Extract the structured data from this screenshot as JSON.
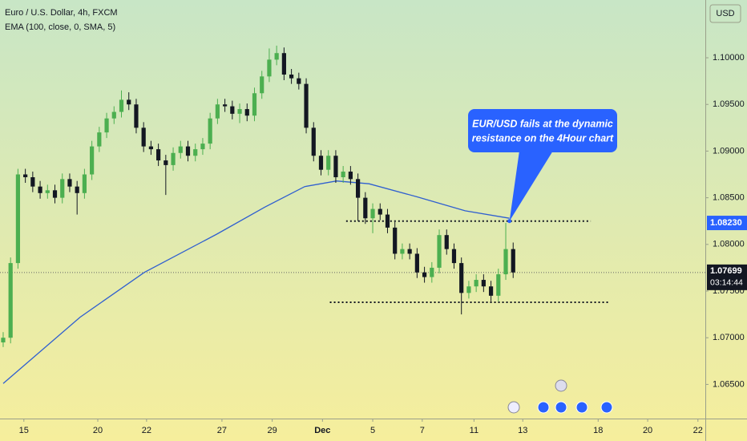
{
  "chart_data": {
    "type": "candlestick",
    "title": "Euro / U.S. Dollar, 4h, FXCM",
    "subtitle": "EMA (100, close, 0, SMA, 5)",
    "currency": "USD",
    "up_color": "#4caf50",
    "down_color": "#131722",
    "open": [
      1.0695,
      1.07,
      1.078,
      1.0875,
      1.0872,
      1.0862,
      1.0855,
      1.0858,
      1.085,
      1.087,
      1.0862,
      1.0855,
      1.0875,
      1.0905,
      1.092,
      1.0935,
      1.0942,
      1.0955,
      1.095,
      1.0925,
      1.0905,
      1.0902,
      1.089,
      1.0885,
      1.0898,
      1.0905,
      1.0895,
      1.0902,
      1.0908,
      1.0935,
      1.095,
      1.0948,
      1.094,
      1.0945,
      1.0938,
      1.0962,
      1.098,
      1.0998,
      1.1005,
      1.0982,
      1.0978,
      1.0972,
      1.0925,
      1.0895,
      1.088,
      1.0895,
      1.0872,
      1.0878,
      1.087,
      1.085,
      1.0828,
      1.0838,
      1.0832,
      1.0818,
      1.079,
      1.0795,
      1.079,
      1.077,
      1.0765,
      1.0775,
      1.081,
      1.0795,
      1.078,
      1.0748,
      1.0755,
      1.0762,
      1.0755,
      1.0745,
      1.0768,
      1.0795
    ],
    "high": [
      1.0706,
      1.0786,
      1.0881,
      1.0881,
      1.0878,
      1.0868,
      1.0864,
      1.0864,
      1.0876,
      1.0876,
      1.0868,
      1.0881,
      1.0911,
      1.0926,
      1.0941,
      1.0948,
      1.0965,
      1.0963,
      1.0956,
      1.0931,
      1.0911,
      1.0908,
      1.0896,
      1.0904,
      1.0911,
      1.0911,
      1.0908,
      1.0914,
      1.0941,
      1.0956,
      1.0956,
      1.0954,
      1.0951,
      1.0951,
      1.0968,
      1.0986,
      1.101,
      1.1013,
      1.1011,
      1.0988,
      1.0984,
      1.0978,
      1.0931,
      1.0901,
      1.0901,
      1.0901,
      1.0884,
      1.0884,
      1.0876,
      1.0856,
      1.0844,
      1.0844,
      1.0838,
      1.0824,
      1.0801,
      1.0801,
      1.0796,
      1.0776,
      1.0781,
      1.0816,
      1.0816,
      1.0801,
      1.0786,
      1.0761,
      1.0768,
      1.0768,
      1.0761,
      1.0774,
      1.0823,
      1.0802
    ],
    "low": [
      1.069,
      1.0694,
      1.0774,
      1.0866,
      1.0856,
      1.0849,
      1.0849,
      1.0844,
      1.0844,
      1.0856,
      1.0832,
      1.0849,
      1.0869,
      1.0899,
      1.0914,
      1.0929,
      1.0936,
      1.0944,
      1.0919,
      1.0899,
      1.0896,
      1.0884,
      1.0853,
      1.0879,
      1.0892,
      1.0889,
      1.0889,
      1.0896,
      1.0902,
      1.0929,
      1.0942,
      1.0934,
      1.093,
      1.0932,
      1.0932,
      1.0956,
      1.0974,
      1.0992,
      1.0976,
      1.0972,
      1.0966,
      1.0919,
      1.0889,
      1.0874,
      1.0874,
      1.0866,
      1.0866,
      1.0864,
      1.0825,
      1.0822,
      1.0812,
      1.0826,
      1.0812,
      1.0784,
      1.0784,
      1.0784,
      1.0764,
      1.0759,
      1.0759,
      1.0769,
      1.0789,
      1.0774,
      1.0725,
      1.0742,
      1.0749,
      1.0749,
      1.0739,
      1.0739,
      1.0762,
      1.0764
    ],
    "close": [
      1.07,
      1.078,
      1.0875,
      1.0872,
      1.0862,
      1.0855,
      1.0858,
      1.085,
      1.087,
      1.0862,
      1.0855,
      1.0875,
      1.0905,
      1.092,
      1.0935,
      1.0942,
      1.0955,
      1.095,
      1.0925,
      1.0905,
      1.0902,
      1.089,
      1.0885,
      1.0898,
      1.0905,
      1.0895,
      1.0902,
      1.0908,
      1.0935,
      1.095,
      1.0948,
      1.094,
      1.0945,
      1.0938,
      1.0962,
      1.098,
      1.0998,
      1.1005,
      1.0982,
      1.0978,
      1.0972,
      1.0925,
      1.0895,
      1.088,
      1.0895,
      1.0872,
      1.0878,
      1.087,
      1.085,
      1.0828,
      1.0838,
      1.0832,
      1.0818,
      1.079,
      1.0795,
      1.079,
      1.077,
      1.0765,
      1.0775,
      1.081,
      1.0795,
      1.078,
      1.0748,
      1.0755,
      1.0762,
      1.0755,
      1.0745,
      1.0768,
      1.0795,
      1.077
    ],
    "ema": {
      "color": "#2f5fd0",
      "x": [
        0,
        10.4,
        19.1,
        28.9,
        35.4,
        40.8,
        45.1,
        49.5,
        56,
        62.5,
        68.5
      ],
      "values": [
        1.0651,
        1.0722,
        1.077,
        1.0811,
        1.084,
        1.0862,
        1.0868,
        1.0865,
        1.0851,
        1.0836,
        1.0828
      ]
    },
    "levels": [
      {
        "value": 1.0825,
        "from": 46.4,
        "to": 79.5
      },
      {
        "value": 1.0738,
        "from": 44.2,
        "to": 82.0
      }
    ],
    "last_price": 1.07699,
    "countdown": "03:14:44",
    "marker": {
      "value": 1.0823,
      "label": "1.08230"
    },
    "annotation": {
      "lines": [
        "EUR/USD fails at the dynamic",
        "resistance on the 4Hour chart"
      ],
      "x": 68.5,
      "y": 1.0825
    },
    "xlim": [
      -0.43,
      95
    ],
    "ylim": [
      1.06134,
      1.10619
    ],
    "yticks": [
      {
        "value": 1.1,
        "label": "1.10000"
      },
      {
        "value": 1.095,
        "label": "1.09500"
      },
      {
        "value": 1.09,
        "label": "1.09000"
      },
      {
        "value": 1.085,
        "label": "1.08500"
      },
      {
        "value": 1.08,
        "label": "1.08000"
      },
      {
        "value": 1.075,
        "label": "1.07500"
      },
      {
        "value": 1.07,
        "label": "1.07000"
      },
      {
        "value": 1.065,
        "label": "1.06500"
      }
    ],
    "xticks": [
      {
        "value": 2.8,
        "label": "15"
      },
      {
        "value": 12.8,
        "label": "20"
      },
      {
        "value": 19.4,
        "label": "22"
      },
      {
        "value": 29.6,
        "label": "27"
      },
      {
        "value": 36.4,
        "label": "29"
      },
      {
        "value": 43.2,
        "label": "Dec"
      },
      {
        "value": 50.0,
        "label": "5"
      },
      {
        "value": 56.7,
        "label": "7"
      },
      {
        "value": 63.7,
        "label": "11"
      },
      {
        "value": 70.3,
        "label": "13"
      },
      {
        "value": 80.5,
        "label": "18"
      },
      {
        "value": 87.2,
        "label": "20"
      },
      {
        "value": 94.0,
        "label": "22"
      }
    ]
  }
}
